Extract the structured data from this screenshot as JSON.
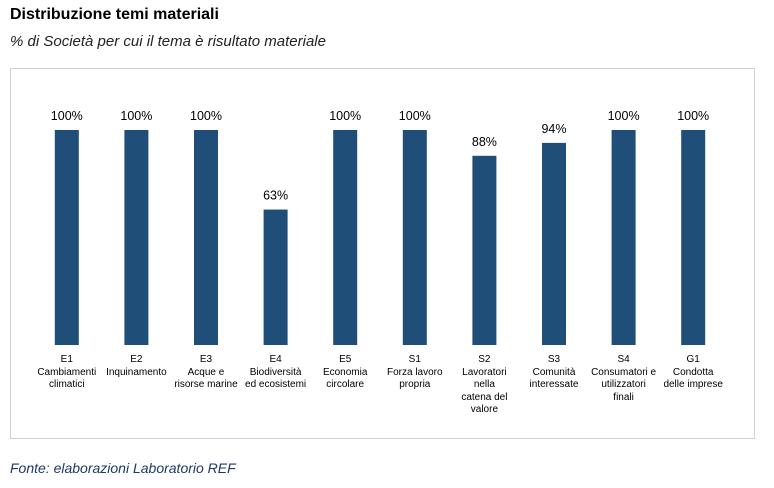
{
  "chart_data": {
    "type": "bar",
    "title": "Distribuzione temi materiali",
    "subtitle": "% di Società per cui il tema è risultato materiale",
    "source": "Fonte: elaborazioni Laboratorio REF",
    "categories": [
      "E1\nCambiamenti\nclimatici",
      "E2\nInquinamento",
      "E3\nAcque e\nrisorse marine",
      "E4\nBiodiversità\ned ecosistemi",
      "E5\nEconomia\ncircolare",
      "S1\nForza lavoro\npropria",
      "S2\nLavoratori\nnella\ncatena del\nvalore",
      "S3\nComunità\ninteressate",
      "S4\nConsumatori e\nutilizzatori\nfinali",
      "G1\nCondotta\ndelle imprese"
    ],
    "values": [
      100,
      100,
      100,
      63,
      100,
      100,
      88,
      94,
      100,
      100
    ],
    "value_labels": [
      "100%",
      "100%",
      "100%",
      "63%",
      "100%",
      "100%",
      "88%",
      "94%",
      "100%",
      "100%"
    ],
    "color": "#1f4e79",
    "ylim": [
      0,
      100
    ]
  }
}
